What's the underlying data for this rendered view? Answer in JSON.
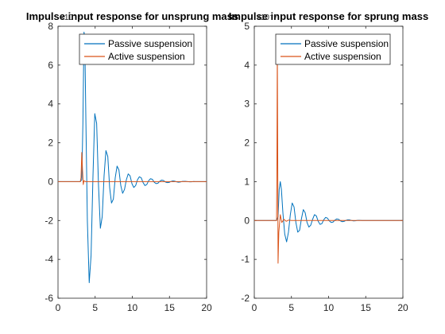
{
  "chart_data": [
    {
      "type": "line",
      "title": "Impulse input response for unsprung mass",
      "xlabel": "",
      "ylabel": "",
      "xlim": [
        0,
        20
      ],
      "ylim": [
        -6,
        8
      ],
      "y_exponent": "×10⁻⁵",
      "xticks": [
        0,
        5,
        10,
        15,
        20
      ],
      "yticks": [
        -6,
        -4,
        -2,
        0,
        2,
        4,
        6,
        8
      ],
      "grid": false,
      "legend_position": "top-right",
      "series": [
        {
          "name": "Passive suspension",
          "color": "#0072BD",
          "x": [
            0,
            3.0,
            3.2,
            3.35,
            3.5,
            3.6,
            3.75,
            3.95,
            4.2,
            4.45,
            4.7,
            4.95,
            5.2,
            5.45,
            5.7,
            5.95,
            6.2,
            6.45,
            6.7,
            6.95,
            7.2,
            7.45,
            7.7,
            7.95,
            8.2,
            8.45,
            8.7,
            8.95,
            9.2,
            9.45,
            9.7,
            9.95,
            10.2,
            10.45,
            10.7,
            10.95,
            11.2,
            11.45,
            11.7,
            11.95,
            12.2,
            12.45,
            12.7,
            12.95,
            13.2,
            13.45,
            13.7,
            13.95,
            14.2,
            14.45,
            14.7,
            14.95,
            15.2,
            15.45,
            15.7,
            15.95,
            16.2,
            16.45,
            16.7,
            16.95,
            17.2,
            17.45,
            17.7,
            17.95,
            18.2,
            18.5,
            19.0,
            20.0
          ],
          "values": [
            0,
            0,
            0.1,
            3.0,
            7.7,
            7.4,
            3.2,
            -2.0,
            -5.2,
            -3.8,
            0.2,
            3.5,
            3.0,
            -0.2,
            -2.4,
            -1.8,
            0.3,
            1.6,
            1.3,
            -0.3,
            -1.1,
            -0.9,
            0.2,
            0.8,
            0.6,
            -0.2,
            -0.6,
            -0.4,
            0.1,
            0.4,
            0.3,
            -0.1,
            -0.3,
            -0.2,
            0.1,
            0.25,
            0.2,
            -0.05,
            -0.2,
            -0.15,
            0.05,
            0.15,
            0.12,
            -0.03,
            -0.1,
            -0.08,
            0.02,
            0.08,
            0.06,
            -0.02,
            -0.05,
            -0.04,
            0.01,
            0.04,
            0.03,
            -0.01,
            -0.03,
            -0.02,
            0.01,
            0.02,
            0.015,
            0.0,
            -0.01,
            -0.008,
            0.005,
            0.003,
            0.0,
            0
          ]
        },
        {
          "name": "Active suspension",
          "color": "#D95319",
          "x": [
            0,
            3.0,
            3.1,
            3.2,
            3.3,
            3.4,
            3.5,
            3.7,
            4.0,
            20.0
          ],
          "values": [
            0,
            0,
            0.2,
            1.5,
            0.6,
            -0.15,
            0.05,
            0.0,
            0.0,
            0
          ]
        }
      ]
    },
    {
      "type": "line",
      "title": "Impulse input response for sprung mass",
      "xlabel": "",
      "ylabel": "",
      "xlim": [
        0,
        20
      ],
      "ylim": [
        -2,
        5
      ],
      "y_exponent": "×10⁻⁶",
      "xticks": [
        0,
        5,
        10,
        15,
        20
      ],
      "yticks": [
        -2,
        -1,
        0,
        1,
        2,
        3,
        4,
        5
      ],
      "grid": false,
      "legend_position": "top-right",
      "series": [
        {
          "name": "Passive suspension",
          "color": "#0072BD",
          "x": [
            0,
            3.0,
            3.2,
            3.35,
            3.5,
            3.65,
            3.85,
            4.1,
            4.35,
            4.6,
            4.85,
            5.1,
            5.35,
            5.6,
            5.85,
            6.1,
            6.35,
            6.6,
            6.85,
            7.1,
            7.35,
            7.6,
            7.85,
            8.1,
            8.35,
            8.6,
            8.85,
            9.1,
            9.35,
            9.6,
            9.85,
            10.1,
            10.35,
            10.6,
            10.85,
            11.1,
            11.35,
            11.6,
            11.85,
            12.1,
            12.35,
            12.6,
            12.85,
            13.1,
            13.35,
            13.6,
            13.85,
            14.1,
            14.5,
            15.0,
            16.0,
            17.0,
            18.0,
            20.0
          ],
          "values": [
            0,
            0,
            0.1,
            0.8,
            1.0,
            0.8,
            0.2,
            -0.35,
            -0.55,
            -0.3,
            0.15,
            0.45,
            0.35,
            -0.05,
            -0.3,
            -0.25,
            0.05,
            0.28,
            0.2,
            -0.05,
            -0.17,
            -0.12,
            0.03,
            0.15,
            0.12,
            -0.02,
            -0.1,
            -0.08,
            0.02,
            0.08,
            0.06,
            -0.01,
            -0.05,
            -0.04,
            0.01,
            0.04,
            0.03,
            -0.01,
            -0.03,
            -0.02,
            0.005,
            0.02,
            0.015,
            0.0,
            -0.01,
            -0.008,
            0.003,
            0.006,
            0.0,
            0.0,
            0.0,
            0.0,
            0.0,
            0
          ]
        },
        {
          "name": "Active suspension",
          "color": "#D95319",
          "x": [
            0,
            3.0,
            3.05,
            3.1,
            3.15,
            3.2,
            3.3,
            3.5,
            3.7,
            4.0,
            4.3,
            4.6,
            5.0,
            20.0
          ],
          "values": [
            0,
            0,
            1.5,
            4.5,
            2.0,
            -1.1,
            -0.3,
            0.15,
            -0.05,
            0.03,
            -0.02,
            0.01,
            0.0,
            0
          ]
        }
      ]
    }
  ]
}
